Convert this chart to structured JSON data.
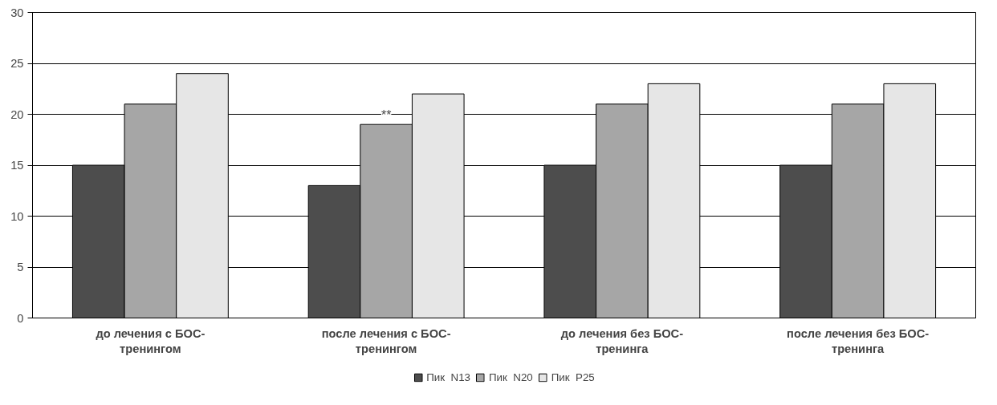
{
  "chart_data": {
    "type": "bar",
    "categories": [
      "до лечения с БОС-тренингом",
      "после лечения с БОС-тренингом",
      "до лечения без БОС-тренинга",
      "после лечения без БОС-тренинга"
    ],
    "series": [
      {
        "name": "Пик  N13",
        "color": "#4d4d4d",
        "values": [
          15,
          13,
          15,
          15
        ]
      },
      {
        "name": "Пик  N20",
        "color": "#a6a6a6",
        "values": [
          21,
          19,
          21,
          21
        ]
      },
      {
        "name": "Пик  P25",
        "color": "#e6e6e6",
        "values": [
          24,
          22,
          23,
          23
        ]
      }
    ],
    "ylim": [
      0,
      30
    ],
    "yticks": [
      0,
      5,
      10,
      15,
      20,
      25,
      30
    ],
    "grid": "y",
    "legend": "bottom",
    "annotations": [
      {
        "text": "**",
        "x": "после лечения с БОС-тренингом",
        "y": 19
      }
    ]
  }
}
